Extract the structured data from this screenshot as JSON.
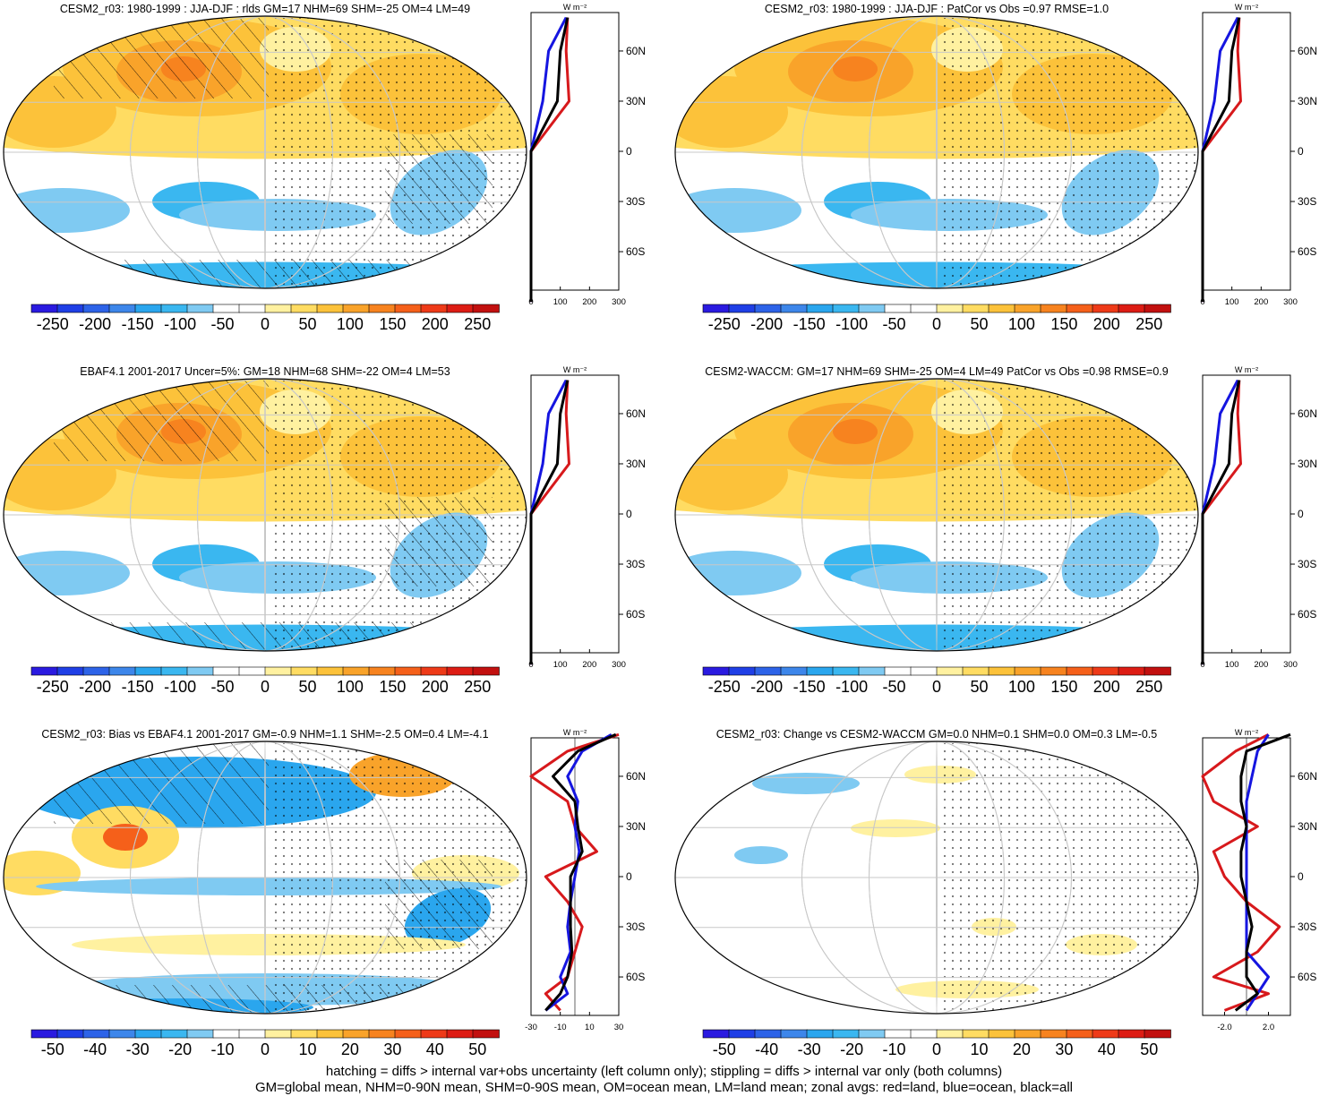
{
  "panels": [
    {
      "title": "CESM2_r03: 1980-1999 : JJA-DJF : rlds GM=17 NHM=69 SHM=-25 OM=4 LM=49",
      "map_kind": "seasonal",
      "hatch": true,
      "colorbar_labels": [
        "-250",
        "-200",
        "-150",
        "-100",
        "-50",
        "0",
        "50",
        "100",
        "150",
        "200",
        "250"
      ],
      "zonal_unit": "W m⁻²",
      "zonal_xticks": [
        "0",
        "100",
        "200",
        "300"
      ],
      "zonal_xrange": [
        0,
        300
      ],
      "lat_labels": [
        "60N",
        "30N",
        "0",
        "30S",
        "60S"
      ]
    },
    {
      "title": "CESM2_r03: 1980-1999 : JJA-DJF : PatCor vs Obs =0.97 RMSE=1.0",
      "map_kind": "seasonal",
      "hatch": false,
      "colorbar_labels": [
        "-250",
        "-200",
        "-150",
        "-100",
        "-50",
        "0",
        "50",
        "100",
        "150",
        "200",
        "250"
      ],
      "zonal_unit": "W m⁻²",
      "zonal_xticks": [
        "0",
        "100",
        "200",
        "300"
      ],
      "zonal_xrange": [
        0,
        300
      ],
      "lat_labels": [
        "60N",
        "30N",
        "0",
        "30S",
        "60S"
      ]
    },
    {
      "title": "EBAF4.1 2001-2017 Uncer=5%: GM=18 NHM=68 SHM=-22 OM=4 LM=53",
      "map_kind": "seasonal",
      "hatch": true,
      "colorbar_labels": [
        "-250",
        "-200",
        "-150",
        "-100",
        "-50",
        "0",
        "50",
        "100",
        "150",
        "200",
        "250"
      ],
      "zonal_unit": "W m⁻²",
      "zonal_xticks": [
        "0",
        "100",
        "200",
        "300"
      ],
      "zonal_xrange": [
        0,
        300
      ],
      "lat_labels": [
        "60N",
        "30N",
        "0",
        "30S",
        "60S"
      ]
    },
    {
      "title": "CESM2-WACCM: GM=17 NHM=69 SHM=-25 OM=4 LM=49 PatCor vs Obs =0.98 RMSE=0.9",
      "map_kind": "seasonal",
      "hatch": false,
      "colorbar_labels": [
        "-250",
        "-200",
        "-150",
        "-100",
        "-50",
        "0",
        "50",
        "100",
        "150",
        "200",
        "250"
      ],
      "zonal_unit": "W m⁻²",
      "zonal_xticks": [
        "0",
        "100",
        "200",
        "300"
      ],
      "zonal_xrange": [
        0,
        300
      ],
      "lat_labels": [
        "60N",
        "30N",
        "0",
        "30S",
        "60S"
      ]
    },
    {
      "title": "CESM2_r03: Bias vs EBAF4.1 2001-2017 GM=-0.9 NHM=1.1 SHM=-2.5 OM=0.4 LM=-4.1",
      "map_kind": "bias",
      "hatch": true,
      "colorbar_labels": [
        "-50",
        "-40",
        "-30",
        "-20",
        "-10",
        "0",
        "10",
        "20",
        "30",
        "40",
        "50"
      ],
      "zonal_unit": "W m⁻²",
      "zonal_xticks": [
        "-30",
        "-10",
        "10",
        "30"
      ],
      "zonal_xrange": [
        -30,
        30
      ],
      "lat_labels": [
        "60N",
        "30N",
        "0",
        "30S",
        "60S"
      ]
    },
    {
      "title": "CESM2_r03: Change vs CESM2-WACCM GM=0.0 NHM=0.1 SHM=0.0 OM=0.3 LM=-0.5",
      "map_kind": "change",
      "hatch": false,
      "colorbar_labels": [
        "-50",
        "-40",
        "-30",
        "-20",
        "-10",
        "0",
        "10",
        "20",
        "30",
        "40",
        "50"
      ],
      "zonal_unit": "W m⁻²",
      "zonal_xticks": [
        "-2.0",
        "2.0"
      ],
      "zonal_xrange": [
        -4,
        4
      ],
      "lat_labels": [
        "60N",
        "30N",
        "0",
        "30S",
        "60S"
      ]
    }
  ],
  "colors": {
    "scale": [
      "#2a1ae0",
      "#1f3fe6",
      "#2d63e8",
      "#3d86ea",
      "#2aa6ee",
      "#3ab7f0",
      "#7fcaf2",
      "#ffffff",
      "#ffffff",
      "#fff1a0",
      "#ffdc62",
      "#fcc23a",
      "#f9a32a",
      "#f7831f",
      "#f5601a",
      "#ee3a18",
      "#dd1c14",
      "#c2100f"
    ],
    "land_line": "#d7191c",
    "ocean_line": "#1515e0",
    "all_line": "#000000"
  },
  "footer": {
    "line1": "hatching = diffs > internal var+obs uncertainty (left column only); stippling = diffs > internal var only (both columns)",
    "line2": "GM=global mean, NHM=0-90N mean, SHM=0-90S mean, OM=ocean mean, LM=land mean; zonal avgs: red=land, blue=ocean, black=all"
  },
  "chart_data": [
    {
      "type": "heatmap",
      "title": "CESM2_r03: 1980-1999 : JJA-DJF : rlds GM=17 NHM=69 SHM=-25 OM=4 LM=49",
      "colorbar": [
        -250,
        -200,
        -150,
        -100,
        -50,
        0,
        50,
        100,
        150,
        200,
        250
      ],
      "zonal": {
        "lat": [
          -90,
          -60,
          -30,
          0,
          30,
          60,
          80
        ],
        "land": [
          0,
          0,
          0,
          0,
          130,
          120,
          125
        ],
        "ocean": [
          0,
          0,
          0,
          0,
          40,
          60,
          120
        ],
        "all": [
          0,
          0,
          0,
          0,
          90,
          100,
          125
        ],
        "xlim": [
          0,
          300
        ]
      }
    },
    {
      "type": "heatmap",
      "title": "CESM2_r03: 1980-1999 : JJA-DJF : PatCor vs Obs =0.97 RMSE=1.0",
      "colorbar": [
        -250,
        -200,
        -150,
        -100,
        -50,
        0,
        50,
        100,
        150,
        200,
        250
      ],
      "zonal": {
        "lat": [
          -90,
          -60,
          -30,
          0,
          30,
          60,
          80
        ],
        "land": [
          0,
          0,
          0,
          0,
          130,
          120,
          125
        ],
        "ocean": [
          0,
          0,
          0,
          0,
          40,
          60,
          120
        ],
        "all": [
          0,
          0,
          0,
          0,
          90,
          100,
          125
        ],
        "xlim": [
          0,
          300
        ]
      }
    },
    {
      "type": "heatmap",
      "title": "EBAF4.1 2001-2017 Uncer=5%: GM=18 NHM=68 SHM=-22 OM=4 LM=53",
      "colorbar": [
        -250,
        -200,
        -150,
        -100,
        -50,
        0,
        50,
        100,
        150,
        200,
        250
      ],
      "zonal": {
        "lat": [
          -90,
          -60,
          -30,
          0,
          30,
          60,
          80
        ],
        "land": [
          0,
          0,
          0,
          0,
          130,
          120,
          125
        ],
        "ocean": [
          0,
          0,
          0,
          0,
          40,
          60,
          120
        ],
        "all": [
          0,
          0,
          0,
          0,
          90,
          100,
          125
        ],
        "xlim": [
          0,
          300
        ]
      }
    },
    {
      "type": "heatmap",
      "title": "CESM2-WACCM: GM=17 NHM=69 SHM=-25 OM=4 LM=49 PatCor vs Obs =0.98 RMSE=0.9",
      "colorbar": [
        -250,
        -200,
        -150,
        -100,
        -50,
        0,
        50,
        100,
        150,
        200,
        250
      ],
      "zonal": {
        "lat": [
          -90,
          -60,
          -30,
          0,
          30,
          60,
          80
        ],
        "land": [
          0,
          0,
          0,
          0,
          130,
          120,
          125
        ],
        "ocean": [
          0,
          0,
          0,
          0,
          40,
          60,
          120
        ],
        "all": [
          0,
          0,
          0,
          0,
          90,
          100,
          125
        ],
        "xlim": [
          0,
          300
        ]
      }
    },
    {
      "type": "heatmap",
      "title": "CESM2_r03: Bias vs EBAF4.1 2001-2017 GM=-0.9 NHM=1.1 SHM=-2.5 OM=0.4 LM=-4.1",
      "colorbar": [
        -50,
        -40,
        -30,
        -20,
        -10,
        0,
        10,
        20,
        30,
        40,
        50
      ],
      "zonal": {
        "lat": [
          -80,
          -70,
          -60,
          -45,
          -30,
          -15,
          0,
          15,
          30,
          45,
          60,
          75,
          85
        ],
        "land": [
          -10,
          -20,
          -5,
          0,
          5,
          -5,
          -20,
          15,
          0,
          -5,
          -30,
          -5,
          30
        ],
        "ocean": [
          -20,
          -5,
          -10,
          -3,
          -5,
          -3,
          0,
          3,
          0,
          2,
          -5,
          5,
          25
        ],
        "all": [
          -20,
          -10,
          -5,
          -2,
          -3,
          -3,
          -3,
          5,
          2,
          0,
          -15,
          2,
          28
        ],
        "xlim": [
          -30,
          30
        ]
      }
    },
    {
      "type": "heatmap",
      "title": "CESM2_r03: Change vs CESM2-WACCM GM=0.0 NHM=0.1 SHM=0.0 OM=0.3 LM=-0.5",
      "colorbar": [
        -50,
        -40,
        -30,
        -20,
        -10,
        0,
        10,
        20,
        30,
        40,
        50
      ],
      "zonal": {
        "lat": [
          -80,
          -70,
          -60,
          -45,
          -30,
          -15,
          0,
          15,
          30,
          45,
          60,
          75,
          85
        ],
        "land": [
          -2,
          2,
          -3,
          1,
          3,
          0,
          -2,
          -3,
          1,
          -3,
          -4,
          -1,
          2
        ],
        "ocean": [
          0,
          1,
          2,
          0,
          0,
          0,
          0,
          0,
          0,
          0,
          0.5,
          1,
          2
        ],
        "all": [
          -1,
          1,
          0,
          0,
          0.5,
          0,
          -0.5,
          -0.5,
          0,
          -0.5,
          -0.5,
          0,
          4
        ],
        "xlim": [
          -4,
          4
        ]
      }
    }
  ]
}
